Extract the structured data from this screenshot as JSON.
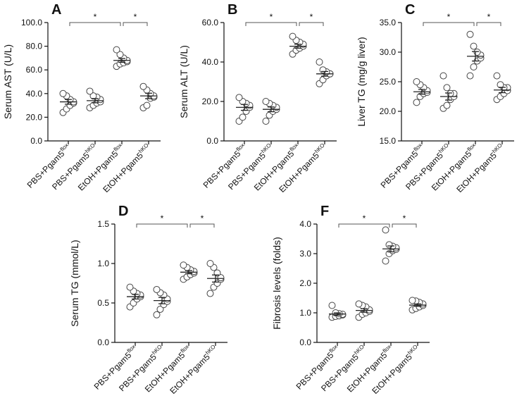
{
  "chart_data": [
    {
      "type": "dot",
      "panel": "A",
      "ylabel": "Serum AST (U/L)",
      "categories": [
        [
          "PBS+Pgam5",
          "flox"
        ],
        [
          "PBS+Pgam5",
          "hKO"
        ],
        [
          "EtOH+Pgam5",
          "flox"
        ],
        [
          "EtOH+Pgam5",
          "hKO"
        ]
      ],
      "values": [
        [
          24,
          27,
          30,
          32,
          33,
          35,
          38,
          40
        ],
        [
          28,
          30,
          32,
          33,
          35,
          37,
          38,
          42
        ],
        [
          63,
          65,
          66,
          67,
          68,
          70,
          73,
          77
        ],
        [
          28,
          30,
          36,
          37,
          38,
          40,
          43,
          46
        ]
      ],
      "means": [
        33,
        34,
        68,
        38
      ],
      "errors": [
        2,
        1.8,
        1.6,
        2.3
      ],
      "ylim": [
        0,
        100
      ],
      "yticks": [
        {
          "value": 0,
          "label": "0.0"
        },
        {
          "value": 20,
          "label": "20.0"
        },
        {
          "value": 40,
          "label": "40.0"
        },
        {
          "value": 60,
          "label": "60.0"
        },
        {
          "value": 80,
          "label": "80.0"
        },
        {
          "value": 100,
          "label": "100.0"
        }
      ],
      "annotations": [
        {
          "from": 0,
          "to": 2,
          "label": "*"
        },
        {
          "from": 2,
          "to": 3,
          "label": "*"
        }
      ]
    },
    {
      "type": "dot",
      "panel": "B",
      "ylabel": "Serum ALT (U/L)",
      "categories": [
        [
          "PBS+Pgam5",
          "flox"
        ],
        [
          "PBS+Pgam5",
          "hKO"
        ],
        [
          "EtOH+Pgam5",
          "flox"
        ],
        [
          "EtOH+Pgam5",
          "hKO"
        ]
      ],
      "values": [
        [
          10,
          12,
          15,
          17,
          18,
          19,
          20,
          22
        ],
        [
          10,
          13,
          15,
          16,
          17,
          18,
          19,
          20
        ],
        [
          44,
          46,
          47,
          48,
          49,
          50,
          51,
          53
        ],
        [
          29,
          31,
          33,
          34,
          34,
          35,
          36,
          40
        ]
      ],
      "means": [
        17,
        16,
        48,
        34
      ],
      "errors": [
        1.5,
        1.2,
        1.0,
        1.2
      ],
      "ylim": [
        0,
        60
      ],
      "yticks": [
        {
          "value": 0,
          "label": "0.0"
        },
        {
          "value": 20,
          "label": "20.0"
        },
        {
          "value": 40,
          "label": "40.0"
        },
        {
          "value": 60,
          "label": "60.0"
        }
      ],
      "annotations": [
        {
          "from": 0,
          "to": 2,
          "label": "*"
        },
        {
          "from": 2,
          "to": 3,
          "label": "*"
        }
      ]
    },
    {
      "type": "dot",
      "panel": "C",
      "ylabel": "Liver TG (mg/g liver)",
      "categories": [
        [
          "PBS+Pgam5",
          "flox"
        ],
        [
          "PBS+Pgam5",
          "hKO"
        ],
        [
          "EtOH+Pgam5",
          "flox"
        ],
        [
          "EtOH+Pgam5",
          "hKO"
        ]
      ],
      "values": [
        [
          21.5,
          22.5,
          23,
          23.2,
          23.5,
          24,
          24.5,
          25
        ],
        [
          20.5,
          21,
          22,
          22.5,
          23,
          23,
          24,
          26
        ],
        [
          26,
          27.5,
          28.5,
          29,
          29.5,
          30,
          31,
          33
        ],
        [
          22,
          22.5,
          23,
          23.5,
          24,
          24,
          24.5,
          26
        ]
      ],
      "means": [
        23.3,
        22.5,
        29.3,
        23.6
      ],
      "errors": [
        0.4,
        0.6,
        0.8,
        0.45
      ],
      "ylim": [
        15,
        35
      ],
      "yticks": [
        {
          "value": 15,
          "label": "15.0"
        },
        {
          "value": 20,
          "label": "20.0"
        },
        {
          "value": 25,
          "label": "25.0"
        },
        {
          "value": 30,
          "label": "30.0"
        },
        {
          "value": 35,
          "label": "35.0"
        }
      ],
      "annotations": [
        {
          "from": 0,
          "to": 2,
          "label": "*"
        },
        {
          "from": 2,
          "to": 3,
          "label": "*"
        }
      ]
    },
    {
      "type": "dot",
      "panel": "D",
      "ylabel": "Serum TG (mmol/L)",
      "categories": [
        [
          "PBS+Pgam5",
          "flox"
        ],
        [
          "PBS+Pgam5",
          "hKO"
        ],
        [
          "EtOH+Pgam5",
          "flox"
        ],
        [
          "EtOH+Pgam5",
          "hKO"
        ]
      ],
      "values": [
        [
          0.45,
          0.5,
          0.55,
          0.58,
          0.6,
          0.62,
          0.65,
          0.7
        ],
        [
          0.35,
          0.42,
          0.48,
          0.52,
          0.55,
          0.6,
          0.63,
          0.67
        ],
        [
          0.8,
          0.83,
          0.86,
          0.88,
          0.9,
          0.92,
          0.95,
          0.98
        ],
        [
          0.62,
          0.7,
          0.75,
          0.8,
          0.82,
          0.88,
          0.95,
          1.0
        ]
      ],
      "means": [
        0.58,
        0.53,
        0.89,
        0.81
      ],
      "errors": [
        0.03,
        0.04,
        0.02,
        0.045
      ],
      "ylim": [
        0,
        1.5
      ],
      "yticks": [
        {
          "value": 0,
          "label": "0.0"
        },
        0.5,
        {
          "value": 1,
          "label": "1.0"
        },
        1.5
      ],
      "annotations": [
        {
          "from": 0,
          "to": 2,
          "label": "*"
        },
        {
          "from": 2,
          "to": 3,
          "label": "*"
        }
      ]
    },
    {
      "type": "dot",
      "panel": "F",
      "ylabel": "Fibrosis levels (folds)",
      "categories": [
        [
          "PBS+Pgam5",
          "flox"
        ],
        [
          "PBS+Pgam5",
          "hKO"
        ],
        [
          "EtOH+Pgam5",
          "flox"
        ],
        [
          "EtOH+Pgam5",
          "hKO"
        ]
      ],
      "values": [
        [
          0.85,
          0.88,
          0.9,
          0.93,
          0.95,
          0.97,
          1.0,
          1.25
        ],
        [
          0.85,
          0.95,
          1.0,
          1.05,
          1.1,
          1.2,
          1.25,
          1.3
        ],
        [
          2.75,
          3.0,
          3.1,
          3.15,
          3.2,
          3.25,
          3.3,
          3.8
        ],
        [
          1.1,
          1.15,
          1.2,
          1.25,
          1.3,
          1.35,
          1.4,
          1.42
        ]
      ],
      "means": [
        0.96,
        1.08,
        3.16,
        1.26
      ],
      "errors": [
        0.04,
        0.06,
        0.1,
        0.04
      ],
      "ylim": [
        0,
        4
      ],
      "yticks": [
        {
          "value": 0,
          "label": "0.0"
        },
        {
          "value": 1,
          "label": "1.0"
        },
        {
          "value": 2,
          "label": "2.0"
        },
        {
          "value": 3,
          "label": "3.0"
        },
        {
          "value": 4,
          "label": "4.0"
        }
      ],
      "annotations": [
        {
          "from": 0,
          "to": 2,
          "label": "*"
        },
        {
          "from": 2,
          "to": 3,
          "label": "*"
        }
      ]
    }
  ]
}
